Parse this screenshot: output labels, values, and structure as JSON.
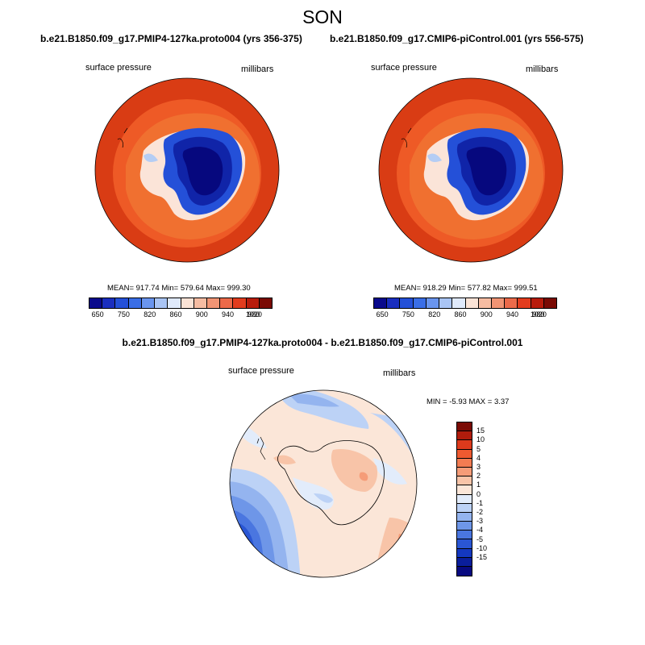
{
  "season": "SON",
  "panels": {
    "left": {
      "title": "b.e21.B1850.f09_g17.PMIP4-127ka.proto004 (yrs 356-375)",
      "variable": "surface pressure",
      "units": "millibars",
      "stats": "MEAN= 917.74  Min= 579.64  Max= 999.30"
    },
    "right": {
      "title": "b.e21.B1850.f09_g17.CMIP6-piControl.001 (yrs 556-575)",
      "variable": "surface pressure",
      "units": "millibars",
      "stats": "MEAN= 918.29  Min= 577.82  Max= 999.51"
    },
    "diff": {
      "title": "b.e21.B1850.f09_g17.PMIP4-127ka.proto004 - b.e21.B1850.f09_g17.CMIP6-piControl.001",
      "variable": "surface pressure",
      "units": "millibars",
      "stats": "MIN =  -5.93 MAX =   3.37"
    }
  },
  "colorbar_abs": {
    "colors": [
      "#0a0a8c",
      "#1a2ebf",
      "#2450d8",
      "#3a6ee6",
      "#6a95ee",
      "#a9c4f4",
      "#dfe9fb",
      "#fbe3d6",
      "#f6bca2",
      "#f19474",
      "#ec6a4a",
      "#e23c1e",
      "#b81c0c",
      "#7a0a04"
    ],
    "ticks": [
      "650",
      "750",
      "820",
      "860",
      "900",
      "940",
      "980",
      "1020"
    ]
  },
  "colorbar_diff": {
    "colors": [
      "#7a0a04",
      "#b01c0c",
      "#dd3a1c",
      "#ee5a30",
      "#f27c52",
      "#f59c78",
      "#f8c4a8",
      "#fbe6d8",
      "#e2ecfb",
      "#bcd2f6",
      "#94b4ef",
      "#6e96e8",
      "#4a76e0",
      "#2a56d4",
      "#1438c0",
      "#0a1e9c",
      "#080a80"
    ],
    "ticks": [
      "15",
      "10",
      "5",
      "4",
      "3",
      "2",
      "1",
      "0",
      "-1",
      "-2",
      "-3",
      "-4",
      "-5",
      "-10",
      "-15"
    ]
  },
  "colors": {
    "ocean_high": "#d0320e",
    "ocean_mid": "#ec5a24",
    "ice_deep": "#06087e"
  }
}
